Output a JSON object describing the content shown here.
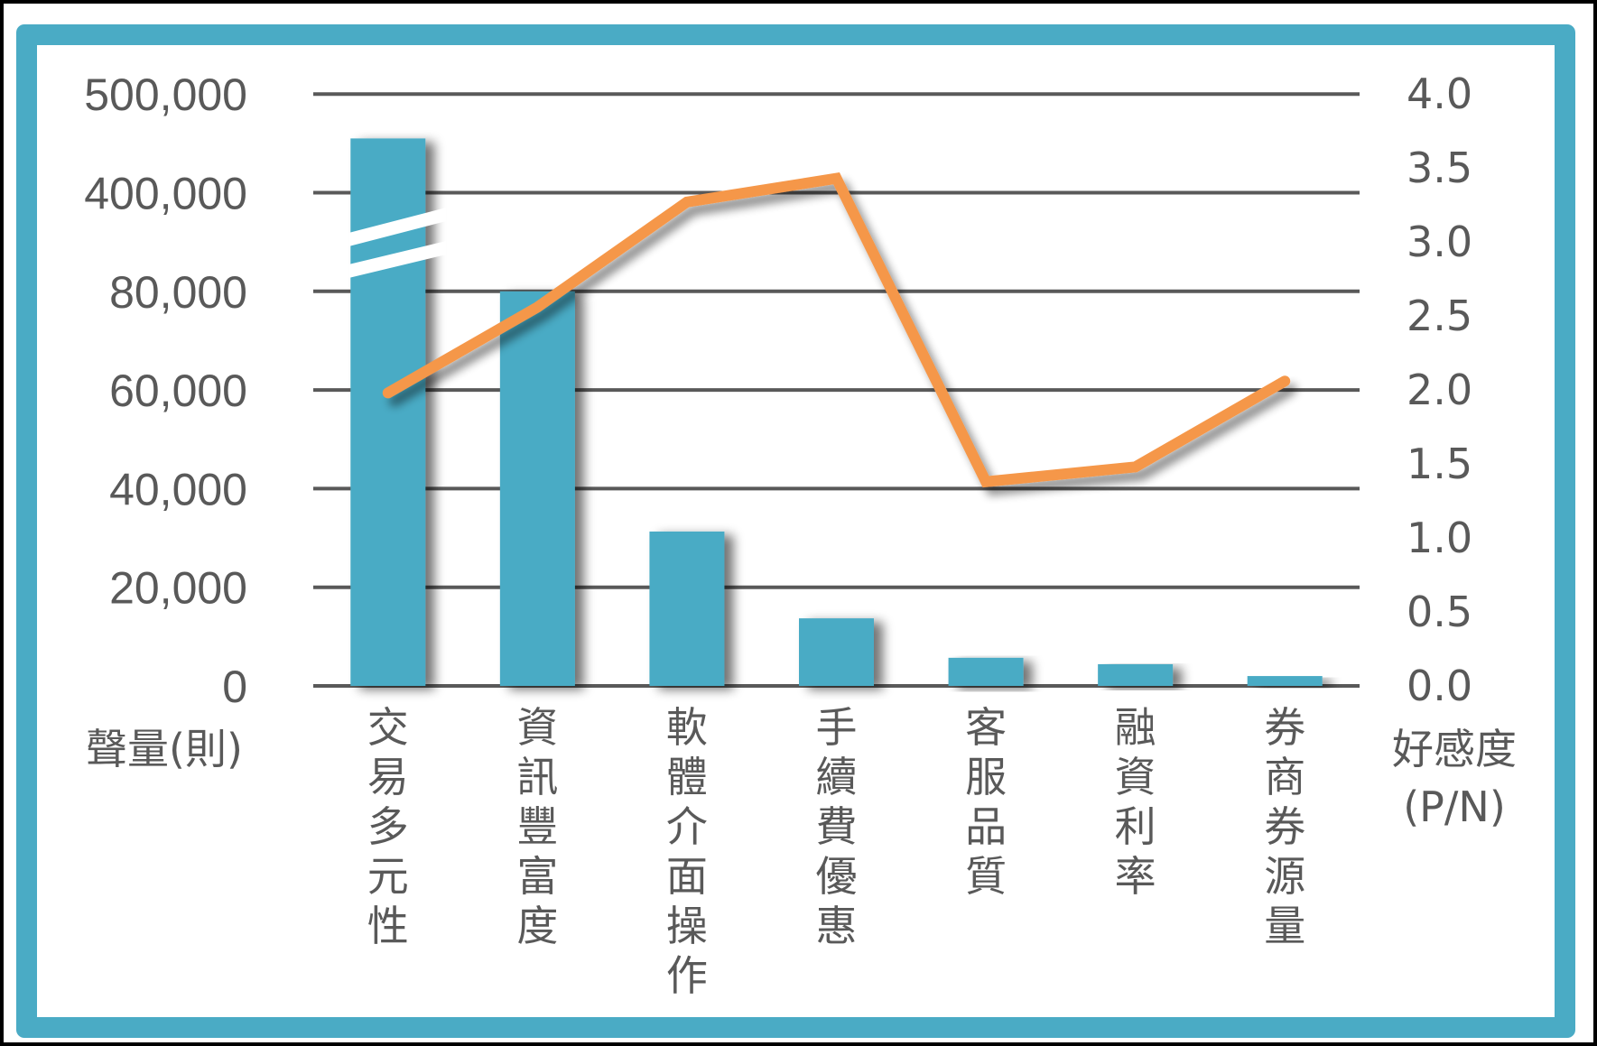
{
  "chart_data": {
    "type": "bar+line",
    "title": "",
    "categories": [
      "交易多元性",
      "資訊豐富度",
      "軟體介面操作",
      "手續費優惠",
      "客服品質",
      "融資利率",
      "券商券源量"
    ],
    "series": [
      {
        "name": "聲量(則)",
        "type": "bar",
        "axis": "left",
        "color": "#4AABC5",
        "values": [
          455000,
          80000,
          31300,
          13700,
          5700,
          4400,
          2000
        ]
      },
      {
        "name": "好感度(P/N)",
        "type": "line",
        "axis": "right",
        "color": "#F59748",
        "values": [
          1.98,
          2.56,
          3.27,
          3.43,
          1.38,
          1.48,
          2.06
        ]
      }
    ],
    "left_axis": {
      "label": "聲量(則)",
      "ticks": [
        "0",
        "20,000",
        "40,000",
        "60,000",
        "80,000",
        "400,000",
        "500,000"
      ],
      "tick_values": [
        0,
        20000,
        40000,
        60000,
        80000,
        400000,
        500000
      ],
      "axis_break": {
        "between": [
          80000,
          400000
        ]
      }
    },
    "right_axis": {
      "label_line1": "好感度",
      "label_line2": "(P/N)",
      "ticks": [
        "0.0",
        "0.5",
        "1.0",
        "1.5",
        "2.0",
        "2.5",
        "3.0",
        "3.5",
        "4.0"
      ],
      "ylim": [
        0,
        4.0
      ]
    },
    "grid": true,
    "legend": "none"
  },
  "style": {
    "frame_color": "#4AABC5",
    "bar_color": "#4AABC5",
    "line_color": "#F59748",
    "grid_color": "#595959",
    "text_color": "#595959"
  }
}
